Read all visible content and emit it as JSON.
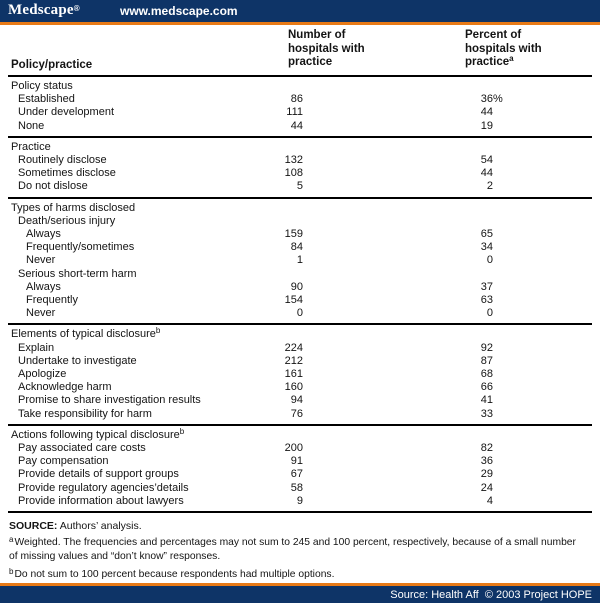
{
  "banner": {
    "logo": "Medscape",
    "logo_mark": "®",
    "url": "www.medscape.com"
  },
  "colors": {
    "navy": "#0e3467",
    "orange": "#e87a16"
  },
  "table": {
    "col1_header": "Policy/practice",
    "col2_header": "Number of hospitals with practice",
    "col3_header": "Percent of hospitals with practice",
    "col3_header_sup": "a",
    "sections": [
      {
        "rows": [
          {
            "label": "Policy status",
            "indent": 0
          },
          {
            "label": "Established",
            "indent": 1,
            "num": "86",
            "pct": "36%"
          },
          {
            "label": "Under development",
            "indent": 1,
            "num": "111",
            "pct": "44"
          },
          {
            "label": "None",
            "indent": 1,
            "num": "44",
            "pct": "19"
          }
        ]
      },
      {
        "rows": [
          {
            "label": "Practice",
            "indent": 0
          },
          {
            "label": "Routinely disclose",
            "indent": 1,
            "num": "132",
            "pct": "54"
          },
          {
            "label": "Sometimes disclose",
            "indent": 1,
            "num": "108",
            "pct": "44"
          },
          {
            "label": "Do not dislose",
            "indent": 1,
            "num": "5",
            "pct": "2"
          }
        ]
      },
      {
        "rows": [
          {
            "label": "Types of harms disclosed",
            "indent": 0
          },
          {
            "label": "Death/serious injury",
            "indent": 1
          },
          {
            "label": "Always",
            "indent": 2,
            "num": "159",
            "pct": "65"
          },
          {
            "label": "Frequently/sometimes",
            "indent": 2,
            "num": "84",
            "pct": "34"
          },
          {
            "label": "Never",
            "indent": 2,
            "num": "1",
            "pct": "0"
          },
          {
            "label": "Serious short-term harm",
            "indent": 1
          },
          {
            "label": "Always",
            "indent": 2,
            "num": "90",
            "pct": "37"
          },
          {
            "label": "Frequently",
            "indent": 2,
            "num": "154",
            "pct": "63"
          },
          {
            "label": "Never",
            "indent": 2,
            "num": "0",
            "pct": "0"
          }
        ]
      },
      {
        "rows": [
          {
            "label": "Elements of typical disclosure",
            "sup": "b",
            "indent": 0
          },
          {
            "label": "Explain",
            "indent": 1,
            "num": "224",
            "pct": "92"
          },
          {
            "label": "Undertake to investigate",
            "indent": 1,
            "num": "212",
            "pct": "87"
          },
          {
            "label": "Apologize",
            "indent": 1,
            "num": "161",
            "pct": "68"
          },
          {
            "label": "Acknowledge harm",
            "indent": 1,
            "num": "160",
            "pct": "66"
          },
          {
            "label": "Promise to share investigation results",
            "indent": 1,
            "num": "94",
            "pct": "41"
          },
          {
            "label": "Take responsibility for harm",
            "indent": 1,
            "num": "76",
            "pct": "33"
          }
        ]
      },
      {
        "rows": [
          {
            "label": "Actions following typical disclosure",
            "sup": "b",
            "indent": 0
          },
          {
            "label": "Pay associated care costs",
            "indent": 1,
            "num": "200",
            "pct": "82"
          },
          {
            "label": "Pay compensation",
            "indent": 1,
            "num": "91",
            "pct": "36"
          },
          {
            "label": "Provide details of support groups",
            "indent": 1,
            "num": "67",
            "pct": "29"
          },
          {
            "label": "Provide regulatory agencies’details",
            "indent": 1,
            "num": "58",
            "pct": "24"
          },
          {
            "label": "Provide information about lawyers",
            "indent": 1,
            "num": "9",
            "pct": "4"
          }
        ]
      }
    ]
  },
  "notes": {
    "source_bold": "SOURCE:",
    "source_text": " Authors’ analysis.",
    "footnotes": [
      {
        "sup": "a",
        "text": "Weighted. The frequencies and percentages may not sum to 245 and 100 percent, respectively, because of a small number of missing values and “don’t know” responses."
      },
      {
        "sup": "b",
        "text": "Do not sum to 100 percent because respondents had multiple options."
      }
    ]
  },
  "footer": {
    "text": "Source: Health Aff  © 2003 Project HOPE"
  }
}
